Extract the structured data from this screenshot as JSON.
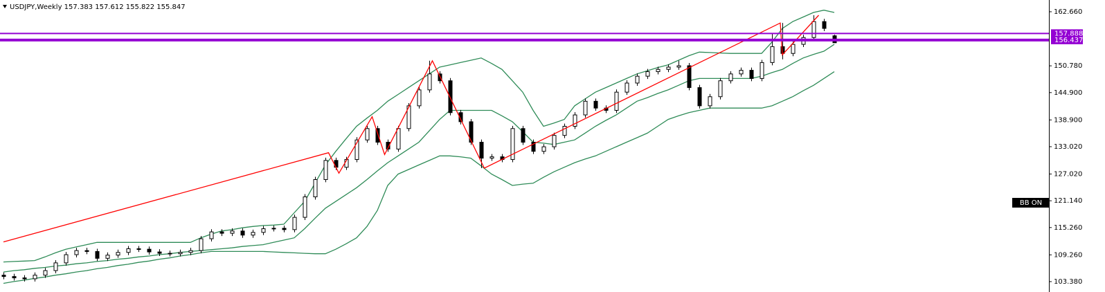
{
  "chart_data": {
    "type": "candlestick",
    "title": "USDJPY,Weekly  157.383 157.612 155.822 155.847",
    "badge": "BB ON",
    "ylim": [
      101.1,
      165.24
    ],
    "yticks": [
      {
        "value": 162.66,
        "label": "162.660"
      },
      {
        "value": 150.78,
        "label": "150.780"
      },
      {
        "value": 144.9,
        "label": "144.900"
      },
      {
        "value": 138.9,
        "label": "138.900"
      },
      {
        "value": 133.02,
        "label": "133.020"
      },
      {
        "value": 127.02,
        "label": "127.020"
      },
      {
        "value": 121.14,
        "label": "121.140"
      },
      {
        "value": 115.26,
        "label": "115.260"
      },
      {
        "value": 109.26,
        "label": "109.260"
      },
      {
        "value": 103.38,
        "label": "103.380"
      }
    ],
    "up_color": "#ffffff",
    "down_color": "#000000",
    "ohlc": [
      [
        104.8,
        105.4,
        103.9,
        104.5
      ],
      [
        104.5,
        105.1,
        103.6,
        104.2
      ],
      [
        104.2,
        104.8,
        103.4,
        104.0
      ],
      [
        104.0,
        105.4,
        103.4,
        104.8
      ],
      [
        104.8,
        106.4,
        104.2,
        105.8
      ],
      [
        105.8,
        108.1,
        105.2,
        107.5
      ],
      [
        107.5,
        109.9,
        106.9,
        109.3
      ],
      [
        109.3,
        110.8,
        108.7,
        110.2
      ],
      [
        110.2,
        110.8,
        109.4,
        110.0
      ],
      [
        110.0,
        110.6,
        107.9,
        108.5
      ],
      [
        108.5,
        109.8,
        107.9,
        109.2
      ],
      [
        109.2,
        110.4,
        108.6,
        109.8
      ],
      [
        109.8,
        111.2,
        109.2,
        110.6
      ],
      [
        110.6,
        111.2,
        109.9,
        110.5
      ],
      [
        110.5,
        111.1,
        109.3,
        109.9
      ],
      [
        109.9,
        110.5,
        109.0,
        109.6
      ],
      [
        109.6,
        110.2,
        108.9,
        109.5
      ],
      [
        109.5,
        110.4,
        108.9,
        109.8
      ],
      [
        109.8,
        110.8,
        109.2,
        110.2
      ],
      [
        110.2,
        113.4,
        109.6,
        112.8
      ],
      [
        112.8,
        114.9,
        112.2,
        114.3
      ],
      [
        114.3,
        114.9,
        113.4,
        114.0
      ],
      [
        114.0,
        115.1,
        113.4,
        114.5
      ],
      [
        114.5,
        115.1,
        113.0,
        113.6
      ],
      [
        113.6,
        114.8,
        113.0,
        114.2
      ],
      [
        114.2,
        115.6,
        113.6,
        115.0
      ],
      [
        115.0,
        115.7,
        114.4,
        115.1
      ],
      [
        115.1,
        115.7,
        114.2,
        114.8
      ],
      [
        114.8,
        118.1,
        114.2,
        117.5
      ],
      [
        117.5,
        122.6,
        116.9,
        122.0
      ],
      [
        122.0,
        126.4,
        121.4,
        125.8
      ],
      [
        125.8,
        130.6,
        125.2,
        130.0
      ],
      [
        130.0,
        130.6,
        127.9,
        128.5
      ],
      [
        128.5,
        130.8,
        127.9,
        130.2
      ],
      [
        130.2,
        135.1,
        129.6,
        134.5
      ],
      [
        134.5,
        137.6,
        133.9,
        137.0
      ],
      [
        137.0,
        137.6,
        133.4,
        134.0
      ],
      [
        134.0,
        134.6,
        131.9,
        132.5
      ],
      [
        132.5,
        137.6,
        131.9,
        137.0
      ],
      [
        137.0,
        142.6,
        136.4,
        142.0
      ],
      [
        142.0,
        146.1,
        141.4,
        145.5
      ],
      [
        145.5,
        151.9,
        144.9,
        149.0
      ],
      [
        149.0,
        149.6,
        146.9,
        147.5
      ],
      [
        147.5,
        148.1,
        139.9,
        140.5
      ],
      [
        140.5,
        141.1,
        137.9,
        138.5
      ],
      [
        138.5,
        139.1,
        133.4,
        134.0
      ],
      [
        134.0,
        134.6,
        128.3,
        130.5
      ],
      [
        130.5,
        131.4,
        129.9,
        130.8
      ],
      [
        130.8,
        131.4,
        129.6,
        130.2
      ],
      [
        130.2,
        137.6,
        129.6,
        137.0
      ],
      [
        137.0,
        137.6,
        133.4,
        134.0
      ],
      [
        134.0,
        134.6,
        131.4,
        132.0
      ],
      [
        132.0,
        133.6,
        131.4,
        133.0
      ],
      [
        133.0,
        136.1,
        132.4,
        135.5
      ],
      [
        135.5,
        138.1,
        134.9,
        137.5
      ],
      [
        137.5,
        140.6,
        136.9,
        140.0
      ],
      [
        140.0,
        143.6,
        139.4,
        143.0
      ],
      [
        143.0,
        143.6,
        140.9,
        141.5
      ],
      [
        141.5,
        142.1,
        140.4,
        141.0
      ],
      [
        141.0,
        145.6,
        140.4,
        145.0
      ],
      [
        145.0,
        147.6,
        144.4,
        147.0
      ],
      [
        147.0,
        149.1,
        146.4,
        148.5
      ],
      [
        148.5,
        150.1,
        147.9,
        149.5
      ],
      [
        149.5,
        150.6,
        148.9,
        150.0
      ],
      [
        150.0,
        151.1,
        149.4,
        150.5
      ],
      [
        150.5,
        151.9,
        149.9,
        150.8
      ],
      [
        150.8,
        151.4,
        145.4,
        146.0
      ],
      [
        146.0,
        146.6,
        141.4,
        142.0
      ],
      [
        142.0,
        144.6,
        141.4,
        144.0
      ],
      [
        144.0,
        148.1,
        143.4,
        147.5
      ],
      [
        147.5,
        149.6,
        146.9,
        149.0
      ],
      [
        149.0,
        150.4,
        148.4,
        149.8
      ],
      [
        149.8,
        150.4,
        147.4,
        148.0
      ],
      [
        148.0,
        152.1,
        147.4,
        151.5
      ],
      [
        151.5,
        158.0,
        150.9,
        155.0
      ],
      [
        155.0,
        160.2,
        152.2,
        153.5
      ],
      [
        153.5,
        156.1,
        152.9,
        155.5
      ],
      [
        155.5,
        157.6,
        154.9,
        157.0
      ],
      [
        157.0,
        161.9,
        156.4,
        160.5
      ],
      [
        160.5,
        161.1,
        158.4,
        159.0
      ],
      [
        157.383,
        157.612,
        155.822,
        155.847
      ]
    ],
    "series": [
      {
        "color": "#2e8b57",
        "values": [
          107.7,
          107.8,
          107.9,
          108,
          108.8,
          109.7,
          110.5,
          111,
          111.5,
          112,
          112,
          112,
          112,
          112,
          112,
          112,
          112,
          112,
          112,
          113,
          113.8,
          114.5,
          114.8,
          115.2,
          115.5,
          115.7,
          115.8,
          116,
          118.5,
          121,
          125,
          129,
          132,
          134.8,
          137.5,
          139.3,
          141,
          143,
          144.5,
          146,
          147.5,
          149,
          150.5,
          151,
          151.5,
          152,
          152.5,
          151.3,
          150,
          147.5,
          145,
          141,
          137.5,
          138.2,
          139,
          142,
          143.5,
          145,
          146,
          147,
          148,
          149,
          149.7,
          150.4,
          151,
          152,
          153,
          153.8,
          153.7,
          153.6,
          153.5,
          153.5,
          153.5,
          153.5,
          156,
          159,
          160.5,
          161.5,
          162.5,
          163,
          162.5
        ]
      },
      {
        "color": "#2e8b57",
        "values": [
          105.5,
          105.8,
          106,
          106.3,
          106.5,
          106.8,
          107,
          107.3,
          107.5,
          107.8,
          108,
          108.3,
          108.5,
          108.8,
          109,
          109.3,
          109.5,
          109.8,
          110,
          110.2,
          110.4,
          110.6,
          110.8,
          111.1,
          111.3,
          111.5,
          112,
          112.5,
          113,
          115,
          117.3,
          119.5,
          121,
          122.5,
          124,
          125.8,
          127.7,
          129.5,
          131,
          132.5,
          134,
          136.5,
          139,
          141,
          141,
          141,
          141,
          141,
          139.8,
          138.5,
          136.3,
          134,
          133.8,
          133.5,
          134,
          134.5,
          136,
          137.5,
          138.8,
          140,
          141.5,
          143,
          143.8,
          144.7,
          145.5,
          146.5,
          147.5,
          148,
          148,
          148,
          148,
          148,
          148,
          148.5,
          149.3,
          150,
          151.3,
          152.5,
          153.3,
          154,
          155.5
        ]
      },
      {
        "color": "#2e8b57",
        "values": [
          103,
          103.4,
          103.7,
          104.1,
          104.4,
          104.8,
          105.1,
          105.5,
          105.8,
          106.2,
          106.5,
          106.9,
          107.2,
          107.6,
          107.9,
          108.3,
          108.6,
          109,
          109.3,
          109.7,
          110,
          110,
          110,
          110,
          110,
          110,
          109.9,
          109.8,
          109.7,
          109.6,
          109.5,
          109.5,
          110.5,
          111.7,
          113,
          115.5,
          119,
          124.5,
          127,
          128,
          129,
          130,
          131,
          131,
          130.8,
          130.5,
          128.8,
          127,
          125.8,
          124.5,
          124.8,
          125,
          126.3,
          127.5,
          128.5,
          129.5,
          130.3,
          131,
          132,
          133,
          134,
          135,
          136,
          137.5,
          139,
          139.8,
          140.5,
          141,
          141.5,
          141.5,
          141.5,
          141.5,
          141.5,
          141.5,
          142,
          143,
          144,
          145.3,
          146.5,
          148,
          149.5
        ]
      }
    ],
    "zigzag": {
      "color": "#ff0000",
      "x": [
        0,
        31.3,
        32.3,
        35.5,
        36.7,
        41.3,
        46.3,
        74.8,
        75,
        78.5
      ],
      "values": [
        112.1,
        131.7,
        127.2,
        139.6,
        131.3,
        151.9,
        128.3,
        160.2,
        153.2,
        161.9
      ]
    },
    "levels": {
      "color": "#9400d3",
      "values": [
        157.888,
        156.437
      ]
    }
  }
}
